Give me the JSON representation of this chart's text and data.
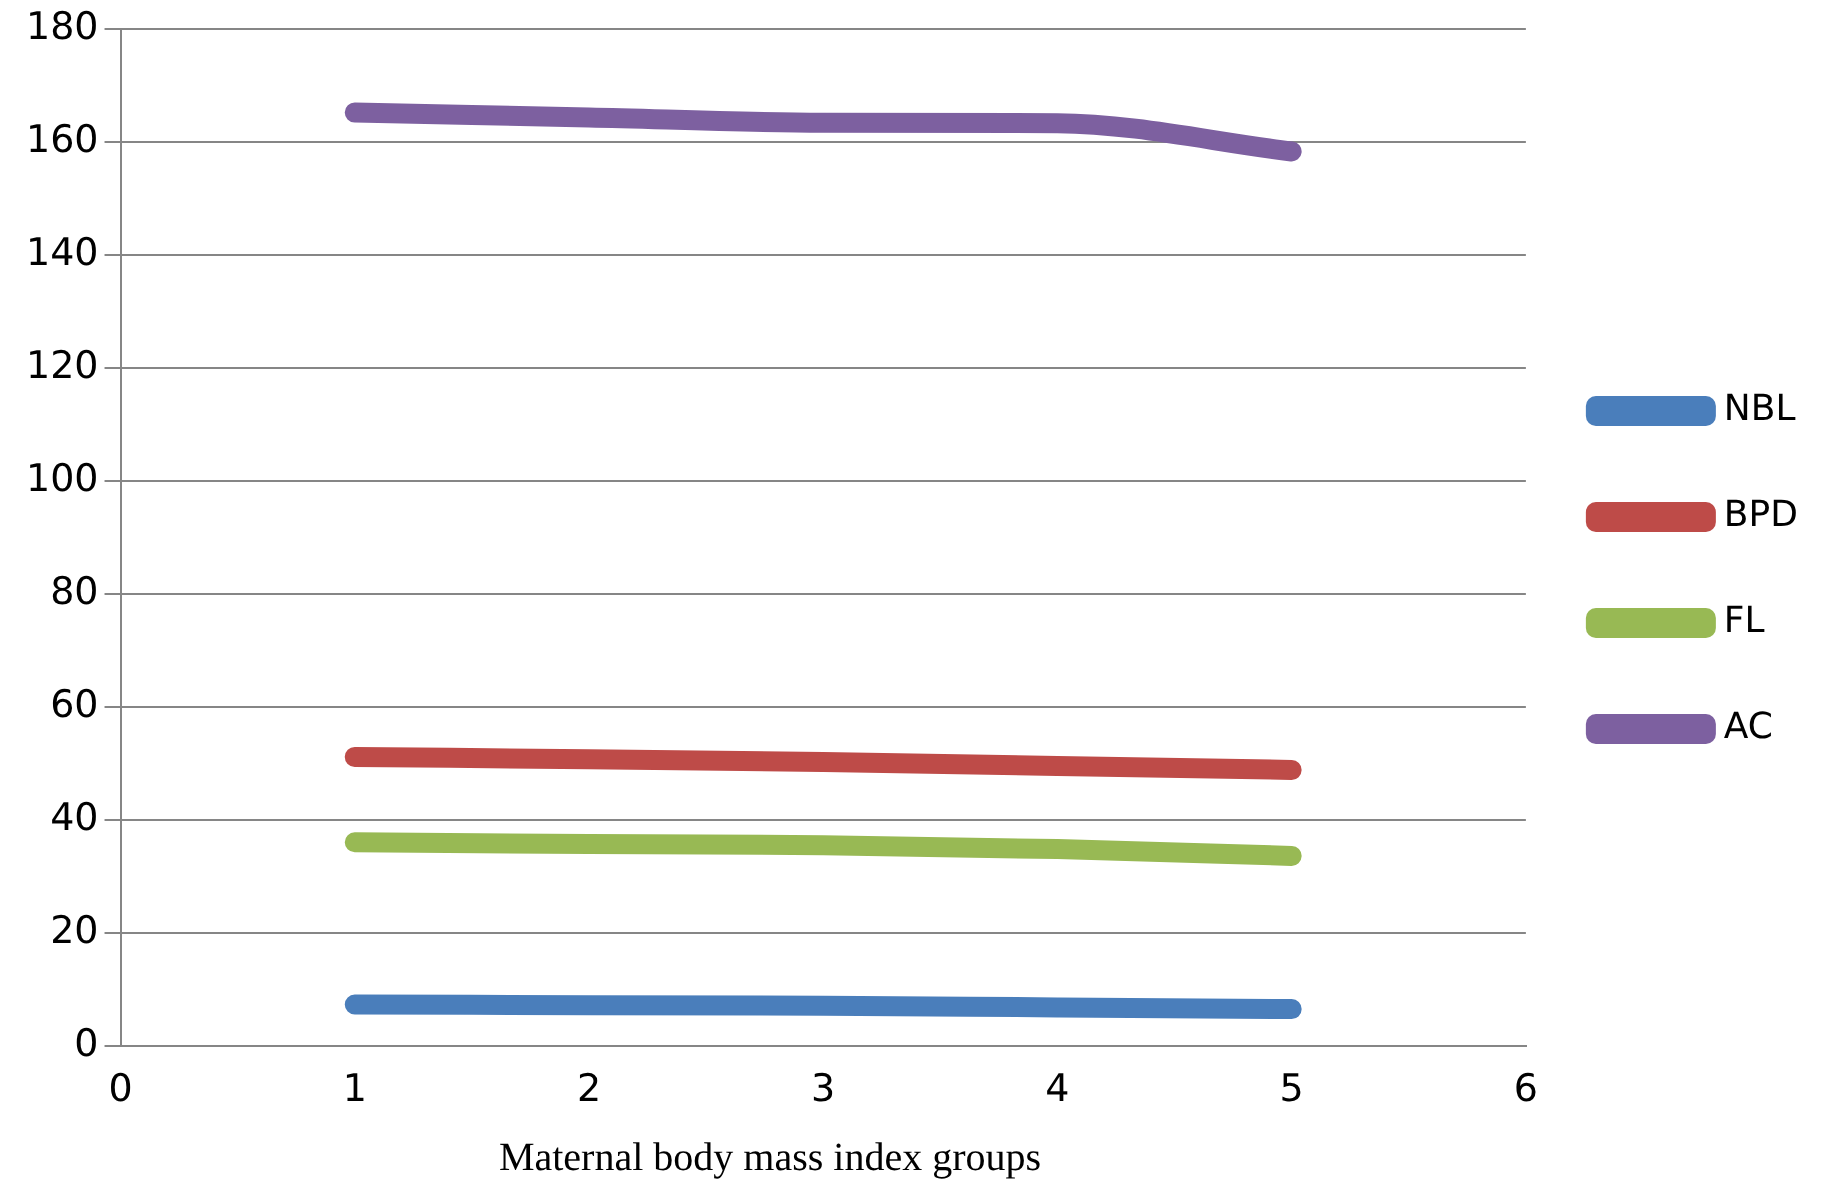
{
  "chart_data": {
    "type": "line",
    "xlabel": "Maternal body mass index groups",
    "x": [
      1,
      2,
      3,
      4,
      5
    ],
    "xlim": [
      0,
      6
    ],
    "xticks": [
      0,
      1,
      2,
      3,
      4,
      5,
      6
    ],
    "ylim": [
      0,
      180
    ],
    "yticks": [
      0,
      20,
      40,
      60,
      80,
      100,
      120,
      140,
      160,
      180
    ],
    "grid": "y",
    "legend": "right",
    "marker": "none",
    "line_style": "solid",
    "series": [
      {
        "name": "NBL",
        "color": "#4a7ebb",
        "values": [
          7.4,
          7.3,
          7.2,
          6.9,
          6.6
        ]
      },
      {
        "name": "BPD",
        "color": "#be4b48",
        "values": [
          51.2,
          50.8,
          50.3,
          49.6,
          48.9
        ]
      },
      {
        "name": "FL",
        "color": "#98b954",
        "values": [
          36.1,
          35.8,
          35.6,
          34.9,
          33.7
        ]
      },
      {
        "name": "AC",
        "color": "#7d60a0",
        "values": [
          165.2,
          164.3,
          163.4,
          163.3,
          158.3
        ]
      }
    ]
  }
}
